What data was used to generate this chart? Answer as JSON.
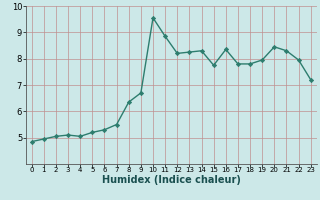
{
  "x": [
    0,
    1,
    2,
    3,
    4,
    5,
    6,
    7,
    8,
    9,
    10,
    11,
    12,
    13,
    14,
    15,
    16,
    17,
    18,
    19,
    20,
    21,
    22,
    23
  ],
  "y": [
    4.85,
    4.95,
    5.05,
    5.1,
    5.05,
    5.2,
    5.3,
    5.5,
    6.35,
    6.7,
    9.55,
    8.85,
    8.2,
    8.25,
    8.3,
    7.75,
    8.35,
    7.8,
    7.8,
    7.95,
    8.45,
    8.3,
    7.95,
    7.2
  ],
  "line_color": "#2d7d6e",
  "bg_color": "#cce8e8",
  "grid_color": "#c09090",
  "xlabel": "Humidex (Indice chaleur)",
  "xlabel_fontsize": 7,
  "tick_fontsize_x": 5,
  "tick_fontsize_y": 6,
  "ylim": [
    4,
    10
  ],
  "xlim": [
    -0.5,
    23.5
  ],
  "yticks": [
    5,
    6,
    7,
    8,
    9,
    10
  ],
  "xticks": [
    0,
    1,
    2,
    3,
    4,
    5,
    6,
    7,
    8,
    9,
    10,
    11,
    12,
    13,
    14,
    15,
    16,
    17,
    18,
    19,
    20,
    21,
    22,
    23
  ],
  "marker": "D",
  "marker_size": 2.2,
  "line_width": 1.0
}
